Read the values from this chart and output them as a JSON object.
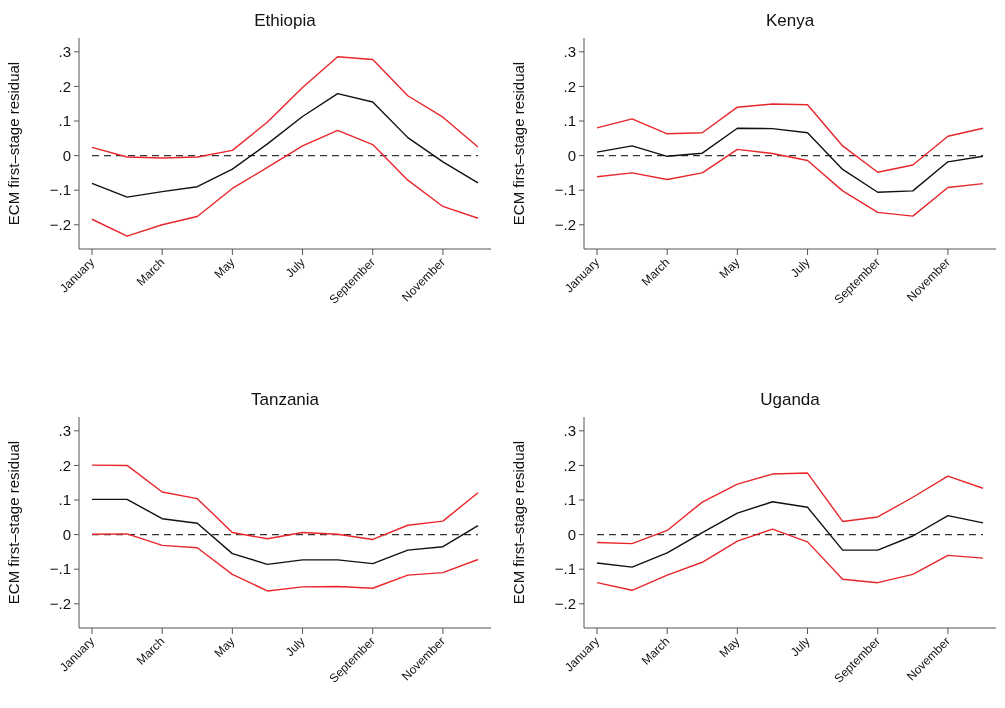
{
  "chart_data": [
    {
      "type": "line",
      "title": "Ethiopia",
      "ylabel": "ECM first–stage residual",
      "categories": [
        "January",
        null,
        "March",
        null,
        "May",
        null,
        "July",
        null,
        "September",
        null,
        "November",
        null
      ],
      "ylim": [
        -0.27,
        0.34
      ],
      "yticks": [
        {
          "value": -0.2,
          "label": "−.2"
        },
        {
          "value": -0.1,
          "label": "−.1"
        },
        {
          "value": 0,
          "label": "0"
        },
        {
          "value": 0.1,
          "label": ".1"
        },
        {
          "value": 0.2,
          "label": ".2"
        },
        {
          "value": 0.3,
          "label": ".3"
        }
      ],
      "ref_lines": [
        {
          "axis": "y",
          "value": 0,
          "line_style": "dashed",
          "color": "#333333"
        }
      ],
      "series": [
        {
          "color": "#e8262b",
          "values": [
            0.024,
            -0.004,
            -0.007,
            -0.004,
            0.015,
            0.097,
            0.197,
            0.286,
            0.278,
            0.173,
            0.111,
            0.025
          ]
        },
        {
          "color": "#e8262b",
          "values": [
            -0.184,
            -0.233,
            -0.2,
            -0.176,
            -0.095,
            -0.034,
            0.028,
            0.073,
            0.032,
            -0.071,
            -0.147,
            -0.181
          ]
        },
        {
          "color": "#111111",
          "values": [
            -0.08,
            -0.12,
            -0.104,
            -0.09,
            -0.039,
            0.034,
            0.113,
            0.179,
            0.155,
            0.052,
            -0.018,
            -0.079
          ]
        }
      ]
    },
    {
      "type": "line",
      "title": "Kenya",
      "ylabel": "ECM first–stage residual",
      "categories": [
        "January",
        null,
        "March",
        null,
        "May",
        null,
        "July",
        null,
        "September",
        null,
        "November",
        null
      ],
      "ylim": [
        -0.27,
        0.34
      ],
      "yticks": [
        {
          "value": -0.2,
          "label": "−.2"
        },
        {
          "value": -0.1,
          "label": "−.1"
        },
        {
          "value": 0,
          "label": "0"
        },
        {
          "value": 0.1,
          "label": ".1"
        },
        {
          "value": 0.2,
          "label": ".2"
        },
        {
          "value": 0.3,
          "label": ".3"
        }
      ],
      "ref_lines": [
        {
          "axis": "y",
          "value": 0,
          "line_style": "dashed",
          "color": "#333333"
        }
      ],
      "series": [
        {
          "color": "#e8262b",
          "values": [
            0.08,
            0.106,
            0.063,
            0.066,
            0.14,
            0.149,
            0.147,
            0.028,
            -0.048,
            -0.027,
            0.056,
            0.079
          ]
        },
        {
          "color": "#e8262b",
          "values": [
            -0.061,
            -0.05,
            -0.069,
            -0.05,
            0.018,
            0.006,
            -0.014,
            -0.102,
            -0.164,
            -0.175,
            -0.092,
            -0.081
          ]
        },
        {
          "color": "#111111",
          "values": [
            0.01,
            0.028,
            -0.002,
            0.007,
            0.079,
            0.078,
            0.066,
            -0.04,
            -0.106,
            -0.102,
            -0.018,
            -0.002
          ]
        }
      ]
    },
    {
      "type": "line",
      "title": "Tanzania",
      "ylabel": "ECM first–stage residual",
      "categories": [
        "January",
        null,
        "March",
        null,
        "May",
        null,
        "July",
        null,
        "September",
        null,
        "November",
        null
      ],
      "ylim": [
        -0.27,
        0.34
      ],
      "yticks": [
        {
          "value": -0.2,
          "label": "−.2"
        },
        {
          "value": -0.1,
          "label": "−.1"
        },
        {
          "value": 0,
          "label": "0"
        },
        {
          "value": 0.1,
          "label": ".1"
        },
        {
          "value": 0.2,
          "label": ".2"
        },
        {
          "value": 0.3,
          "label": ".3"
        }
      ],
      "ref_lines": [
        {
          "axis": "y",
          "value": 0,
          "line_style": "dashed",
          "color": "#333333"
        }
      ],
      "series": [
        {
          "color": "#e8262b",
          "values": [
            0.201,
            0.2,
            0.123,
            0.104,
            0.006,
            -0.012,
            0.006,
            0.001,
            -0.014,
            0.027,
            0.039,
            0.121
          ]
        },
        {
          "color": "#e8262b",
          "values": [
            0.001,
            0.002,
            -0.031,
            -0.038,
            -0.115,
            -0.163,
            -0.151,
            -0.15,
            -0.155,
            -0.117,
            -0.11,
            -0.072
          ]
        },
        {
          "color": "#111111",
          "values": [
            0.102,
            0.102,
            0.046,
            0.033,
            -0.055,
            -0.086,
            -0.073,
            -0.073,
            -0.084,
            -0.045,
            -0.035,
            0.026
          ]
        }
      ]
    },
    {
      "type": "line",
      "title": "Uganda",
      "ylabel": "ECM first–stage residual",
      "categories": [
        "January",
        null,
        "March",
        null,
        "May",
        null,
        "July",
        null,
        "September",
        null,
        "November",
        null
      ],
      "ylim": [
        -0.27,
        0.34
      ],
      "yticks": [
        {
          "value": -0.2,
          "label": "−.2"
        },
        {
          "value": -0.1,
          "label": "−.1"
        },
        {
          "value": 0,
          "label": "0"
        },
        {
          "value": 0.1,
          "label": ".1"
        },
        {
          "value": 0.2,
          "label": ".2"
        },
        {
          "value": 0.3,
          "label": ".3"
        }
      ],
      "ref_lines": [
        {
          "axis": "y",
          "value": 0,
          "line_style": "dashed",
          "color": "#333333"
        }
      ],
      "series": [
        {
          "color": "#e8262b",
          "values": [
            -0.023,
            -0.026,
            0.012,
            0.094,
            0.146,
            0.175,
            0.178,
            0.038,
            0.051,
            0.108,
            0.169,
            0.134
          ]
        },
        {
          "color": "#e8262b",
          "values": [
            -0.139,
            -0.161,
            -0.117,
            -0.08,
            -0.019,
            0.016,
            -0.021,
            -0.129,
            -0.139,
            -0.115,
            -0.06,
            -0.068
          ]
        },
        {
          "color": "#111111",
          "values": [
            -0.082,
            -0.094,
            -0.053,
            0.006,
            0.062,
            0.095,
            0.079,
            -0.045,
            -0.045,
            -0.004,
            0.055,
            0.034
          ]
        }
      ]
    }
  ]
}
